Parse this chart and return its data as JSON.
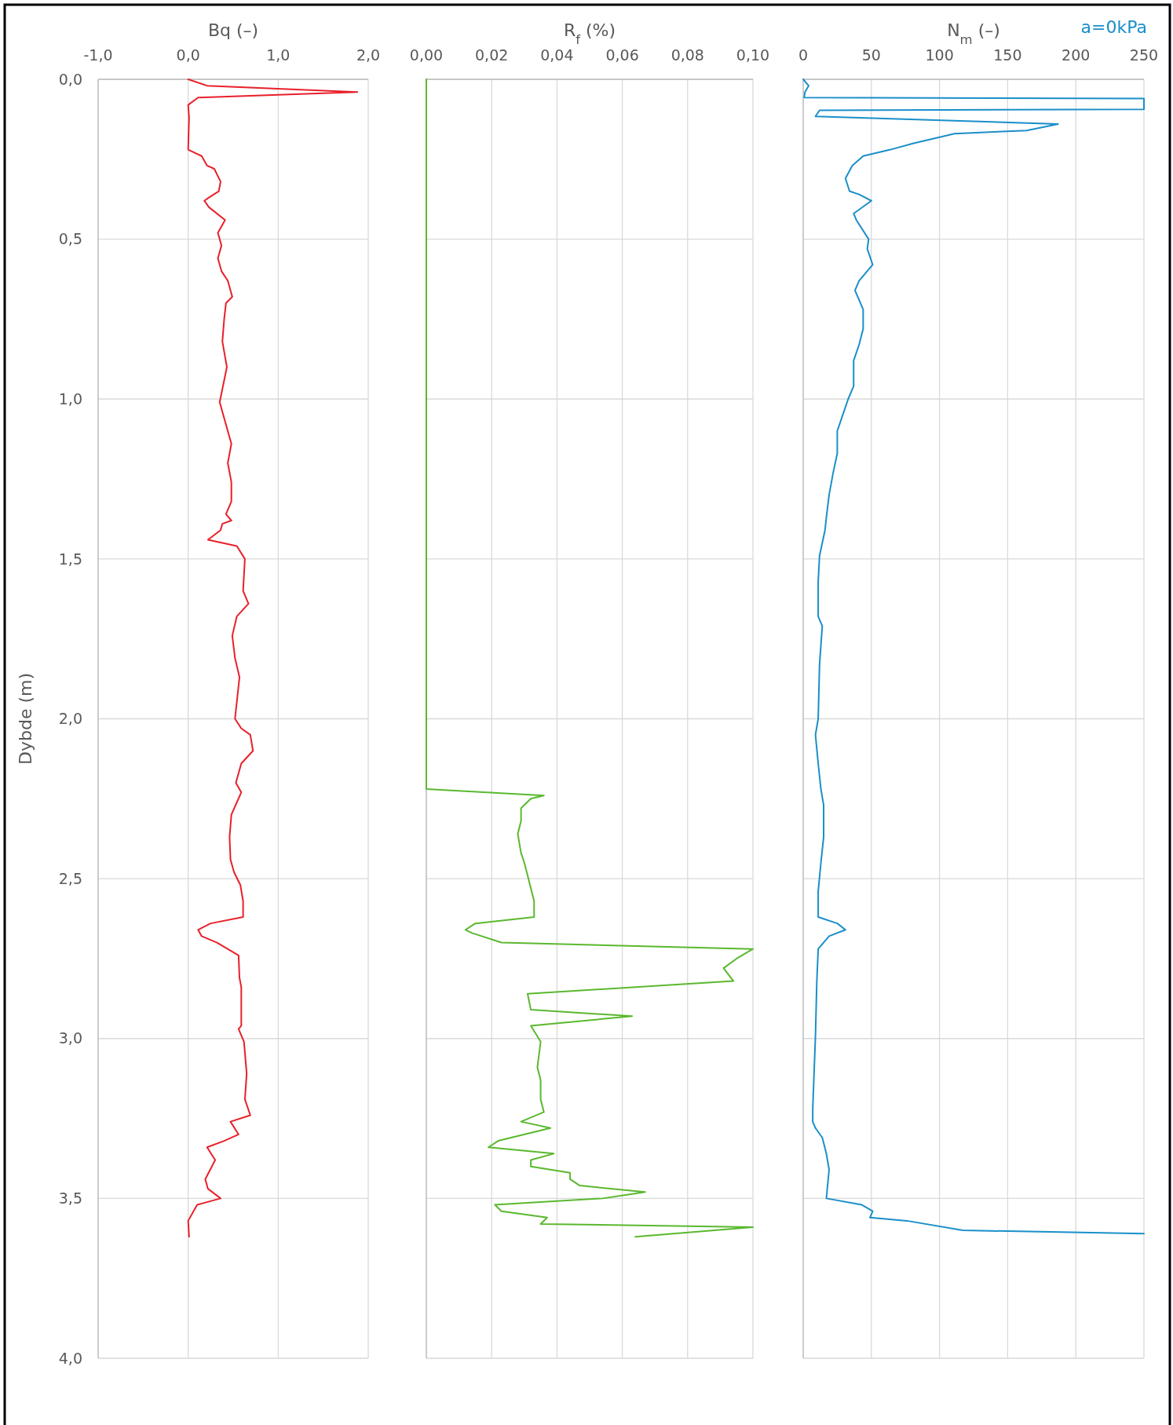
{
  "chart_data": [
    {
      "type": "line",
      "title": "Bq (–)",
      "ylabel": "Dybde (m)",
      "xlim": [
        -1,
        2
      ],
      "xticks": [
        {
          "value": -1,
          "label": "-1,0"
        },
        {
          "value": 0,
          "label": "0,0"
        },
        {
          "value": 1,
          "label": "1,0"
        },
        {
          "value": 2,
          "label": "2,0"
        }
      ],
      "ylim": [
        4,
        0
      ],
      "yticks": [
        {
          "value": 0,
          "label": "0,0"
        },
        {
          "value": 0.5,
          "label": "0,5"
        },
        {
          "value": 1,
          "label": "1,0"
        },
        {
          "value": 1.5,
          "label": "1,5"
        },
        {
          "value": 2,
          "label": "2,0"
        },
        {
          "value": 2.5,
          "label": "2,5"
        },
        {
          "value": 3,
          "label": "3,0"
        },
        {
          "value": 3.5,
          "label": "3,5"
        },
        {
          "value": 4,
          "label": "4,0"
        }
      ],
      "grid": true,
      "series": [
        {
          "color": "#e8202a",
          "x": [
            0,
            0.21,
            1.88,
            0.11,
            0,
            0.01,
            0,
            0.15,
            0.21,
            0.29,
            0.36,
            0.34,
            0.23,
            0.18,
            0.23,
            0.41,
            0.33,
            0.37,
            0.33,
            0.37,
            0.44,
            0.49,
            0.42,
            0.4,
            0.38,
            0.43,
            0.35,
            0.41,
            0.48,
            0.44,
            0.48,
            0.48,
            0.42,
            0.48,
            0.38,
            0.36,
            0.22,
            0.54,
            0.63,
            0.61,
            0.67,
            0.54,
            0.49,
            0.52,
            0.57,
            0.52,
            0.59,
            0.69,
            0.72,
            0.59,
            0.53,
            0.59,
            0.48,
            0.46,
            0.47,
            0.51,
            0.58,
            0.61,
            0.61,
            0.25,
            0.11,
            0.15,
            0.32,
            0.56,
            0.57,
            0.59,
            0.59,
            0.56,
            0.62,
            0.65,
            0.63,
            0.69,
            0.47,
            0.56,
            0.4,
            0.21,
            0.3,
            0.19,
            0.22,
            0.36,
            0.1,
            0,
            0.01
          ],
          "values": [
            0,
            0.02,
            0.04,
            0.057,
            0.08,
            0.12,
            0.22,
            0.24,
            0.27,
            0.28,
            0.32,
            0.35,
            0.37,
            0.38,
            0.4,
            0.44,
            0.48,
            0.52,
            0.56,
            0.6,
            0.63,
            0.68,
            0.7,
            0.75,
            0.82,
            0.9,
            1.01,
            1.07,
            1.14,
            1.2,
            1.26,
            1.32,
            1.36,
            1.38,
            1.39,
            1.41,
            1.44,
            1.46,
            1.5,
            1.6,
            1.64,
            1.68,
            1.74,
            1.81,
            1.87,
            2,
            2.03,
            2.05,
            2.1,
            2.14,
            2.2,
            2.23,
            2.3,
            2.37,
            2.44,
            2.48,
            2.52,
            2.57,
            2.62,
            2.64,
            2.66,
            2.68,
            2.7,
            2.74,
            2.81,
            2.84,
            2.96,
            2.97,
            3.01,
            3.11,
            3.19,
            3.24,
            3.26,
            3.3,
            3.32,
            3.34,
            3.38,
            3.44,
            3.47,
            3.5,
            3.52,
            3.57,
            3.62
          ]
        }
      ]
    },
    {
      "type": "line",
      "title": "R$_{f}$ (%)",
      "xlim": [
        0,
        0.1
      ],
      "xticks": [
        {
          "value": 0,
          "label": "0,00"
        },
        {
          "value": 0.02,
          "label": "0,02"
        },
        {
          "value": 0.04,
          "label": "0,04"
        },
        {
          "value": 0.06,
          "label": "0,06"
        },
        {
          "value": 0.08,
          "label": "0,08"
        },
        {
          "value": 0.1,
          "label": "0,10"
        }
      ],
      "ylim": [
        4,
        0
      ],
      "yticks": [
        {
          "value": 0,
          "label": null
        },
        {
          "value": 0.5,
          "label": null
        },
        {
          "value": 1,
          "label": null
        },
        {
          "value": 1.5,
          "label": null
        },
        {
          "value": 2,
          "label": null
        },
        {
          "value": 2.5,
          "label": null
        },
        {
          "value": 3,
          "label": null
        },
        {
          "value": 3.5,
          "label": null
        },
        {
          "value": 4,
          "label": null
        }
      ],
      "grid": true,
      "tick_labels": "x",
      "series": [
        {
          "color": "#5ab82e",
          "x": [
            0,
            0,
            0.036,
            0.032,
            0.029,
            0.029,
            0.028,
            0.029,
            0.03,
            0.031,
            0.033,
            0.033,
            0.033,
            0.015,
            0.012,
            0.014,
            0.023,
            0.1,
            0.095,
            0.091,
            0.094,
            0.031,
            0.032,
            0.063,
            0.032,
            0.035,
            0.034,
            0.035,
            0.035,
            0.036,
            0.029,
            0.038,
            0.022,
            0.019,
            0.039,
            0.032,
            0.032,
            0.044,
            0.044,
            0.047,
            0.067,
            0.054,
            0.021,
            0.023,
            0.037,
            0.035,
            0.1,
            0.064
          ],
          "values": [
            0,
            2.22,
            2.24,
            2.25,
            2.28,
            2.32,
            2.36,
            2.42,
            2.45,
            2.49,
            2.57,
            2.59,
            2.62,
            2.64,
            2.66,
            2.67,
            2.7,
            2.72,
            2.75,
            2.78,
            2.82,
            2.86,
            2.91,
            2.93,
            2.96,
            3.01,
            3.09,
            3.13,
            3.19,
            3.23,
            3.26,
            3.28,
            3.32,
            3.34,
            3.36,
            3.38,
            3.4,
            3.42,
            3.44,
            3.46,
            3.48,
            3.5,
            3.52,
            3.54,
            3.56,
            3.58,
            3.59,
            3.62
          ]
        }
      ]
    },
    {
      "type": "line",
      "title": "N$_{m}$ (–)",
      "xlim": [
        0,
        250
      ],
      "xticks": [
        0,
        50,
        100,
        150,
        200,
        250
      ],
      "ylim": [
        4,
        0
      ],
      "yticks": [
        {
          "value": 0,
          "label": null
        },
        {
          "value": 0.5,
          "label": null
        },
        {
          "value": 1,
          "label": null
        },
        {
          "value": 1.5,
          "label": null
        },
        {
          "value": 2,
          "label": null
        },
        {
          "value": 2.5,
          "label": null
        },
        {
          "value": 3,
          "label": null
        },
        {
          "value": 3.5,
          "label": null
        },
        {
          "value": 4,
          "label": null
        }
      ],
      "grid": true,
      "tick_labels": "x",
      "legend": "top right",
      "series": [
        {
          "name": "a=0kPa",
          "color": "#1a8fc9",
          "x": [
            0,
            4,
            1.3,
            0.7,
            250,
            250,
            12,
            9,
            187,
            164,
            111,
            81,
            64,
            44,
            36,
            31,
            34,
            41,
            50,
            37,
            39,
            48,
            47,
            51,
            45,
            41,
            38,
            44,
            44,
            41,
            37,
            37,
            33,
            29,
            25,
            25,
            22,
            19,
            17,
            16,
            12,
            11,
            11,
            14,
            12,
            11,
            9,
            11,
            13,
            15,
            15,
            13,
            11,
            11,
            25,
            31,
            19,
            11,
            10,
            9,
            7,
            7,
            9,
            14,
            17,
            19,
            17,
            43,
            51,
            49,
            76,
            117,
            250
          ],
          "values": [
            0,
            0.02,
            0.04,
            0.057,
            0.06,
            0.094,
            0.097,
            0.116,
            0.14,
            0.16,
            0.17,
            0.2,
            0.22,
            0.24,
            0.27,
            0.31,
            0.35,
            0.36,
            0.38,
            0.42,
            0.44,
            0.5,
            0.53,
            0.58,
            0.61,
            0.63,
            0.66,
            0.72,
            0.78,
            0.83,
            0.88,
            0.96,
            1,
            1.05,
            1.1,
            1.17,
            1.23,
            1.3,
            1.37,
            1.41,
            1.49,
            1.57,
            1.68,
            1.71,
            1.83,
            2,
            2.05,
            2.14,
            2.22,
            2.27,
            2.37,
            2.45,
            2.54,
            2.62,
            2.64,
            2.66,
            2.68,
            2.72,
            2.82,
            2.99,
            3.22,
            3.26,
            3.28,
            3.31,
            3.36,
            3.41,
            3.5,
            3.52,
            3.54,
            3.56,
            3.57,
            3.6,
            3.61
          ]
        }
      ]
    }
  ]
}
